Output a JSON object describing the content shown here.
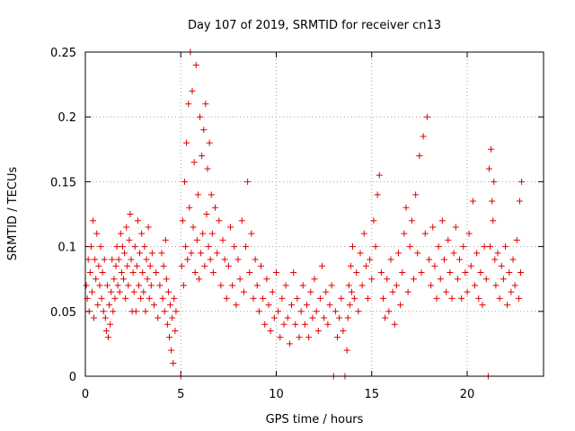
{
  "chart_data": {
    "type": "scatter",
    "title": "Day 107 of 2019, SRMTID for receiver cn13",
    "xlabel": "GPS time / hours",
    "ylabel": "SRMTID / TECUs",
    "xlim": [
      0,
      24
    ],
    "ylim": [
      0,
      0.25
    ],
    "xticks": [
      0,
      5,
      10,
      15,
      20
    ],
    "xtick_labels": [
      "0",
      "5",
      "10",
      "15",
      "20"
    ],
    "yticks": [
      0,
      0.05,
      0.1,
      0.15,
      0.2,
      0.25
    ],
    "ytick_labels": [
      "0",
      "0.05",
      "0.1",
      "0.15",
      "0.2",
      "0.25"
    ],
    "grid": true,
    "marker": "+",
    "series": [
      {
        "name": "SRMTID",
        "color": "#e00000",
        "points": [
          [
            0.05,
            0.07
          ],
          [
            0.1,
            0.06
          ],
          [
            0.15,
            0.09
          ],
          [
            0.2,
            0.05
          ],
          [
            0.25,
            0.08
          ],
          [
            0.3,
            0.1
          ],
          [
            0.35,
            0.065
          ],
          [
            0.4,
            0.12
          ],
          [
            0.45,
            0.045
          ],
          [
            0.5,
            0.09
          ],
          [
            0.55,
            0.075
          ],
          [
            0.6,
            0.11
          ],
          [
            0.65,
            0.055
          ],
          [
            0.7,
            0.085
          ],
          [
            0.75,
            0.07
          ],
          [
            0.8,
            0.1
          ],
          [
            0.85,
            0.06
          ],
          [
            0.9,
            0.08
          ],
          [
            0.95,
            0.05
          ],
          [
            1.0,
            0.09
          ],
          [
            1.05,
            0.045
          ],
          [
            1.1,
            0.035
          ],
          [
            1.15,
            0.07
          ],
          [
            1.2,
            0.03
          ],
          [
            1.25,
            0.055
          ],
          [
            1.3,
            0.04
          ],
          [
            1.35,
            0.065
          ],
          [
            1.4,
            0.09
          ],
          [
            1.45,
            0.05
          ],
          [
            1.5,
            0.075
          ],
          [
            1.55,
            0.06
          ],
          [
            1.6,
            0.085
          ],
          [
            1.65,
            0.1
          ],
          [
            1.7,
            0.07
          ],
          [
            1.75,
            0.09
          ],
          [
            1.8,
            0.065
          ],
          [
            1.85,
            0.11
          ],
          [
            1.9,
            0.08
          ],
          [
            1.95,
            0.1
          ],
          [
            2.0,
            0.075
          ],
          [
            2.05,
            0.095
          ],
          [
            2.1,
            0.06
          ],
          [
            2.15,
            0.115
          ],
          [
            2.2,
            0.085
          ],
          [
            2.25,
            0.07
          ],
          [
            2.3,
            0.105
          ],
          [
            2.35,
            0.125
          ],
          [
            2.4,
            0.09
          ],
          [
            2.45,
            0.05
          ],
          [
            2.5,
            0.08
          ],
          [
            2.55,
            0.065
          ],
          [
            2.6,
            0.1
          ],
          [
            2.65,
            0.05
          ],
          [
            2.7,
            0.085
          ],
          [
            2.75,
            0.12
          ],
          [
            2.8,
            0.07
          ],
          [
            2.85,
            0.095
          ],
          [
            2.9,
            0.06
          ],
          [
            2.95,
            0.11
          ],
          [
            3.0,
            0.08
          ],
          [
            3.05,
            0.065
          ],
          [
            3.1,
            0.1
          ],
          [
            3.15,
            0.05
          ],
          [
            3.2,
            0.09
          ],
          [
            3.25,
            0.075
          ],
          [
            3.3,
            0.115
          ],
          [
            3.35,
            0.06
          ],
          [
            3.4,
            0.085
          ],
          [
            3.45,
            0.07
          ],
          [
            3.5,
            0.095
          ],
          [
            3.6,
            0.055
          ],
          [
            3.7,
            0.08
          ],
          [
            3.8,
            0.045
          ],
          [
            3.9,
            0.07
          ],
          [
            4.0,
            0.095
          ],
          [
            4.05,
            0.06
          ],
          [
            4.1,
            0.085
          ],
          [
            4.15,
            0.05
          ],
          [
            4.2,
            0.105
          ],
          [
            4.25,
            0.075
          ],
          [
            4.3,
            0.04
          ],
          [
            4.35,
            0.065
          ],
          [
            4.4,
            0.03
          ],
          [
            4.45,
            0.055
          ],
          [
            4.5,
            0.02
          ],
          [
            4.55,
            0.045
          ],
          [
            4.6,
            0.01
          ],
          [
            4.65,
            0.06
          ],
          [
            4.7,
            0.035
          ],
          [
            4.75,
            0.05
          ],
          [
            5.0,
            0.0
          ],
          [
            5.05,
            0.085
          ],
          [
            5.1,
            0.12
          ],
          [
            5.15,
            0.07
          ],
          [
            5.2,
            0.15
          ],
          [
            5.25,
            0.1
          ],
          [
            5.3,
            0.18
          ],
          [
            5.35,
            0.09
          ],
          [
            5.4,
            0.21
          ],
          [
            5.45,
            0.13
          ],
          [
            5.5,
            0.25
          ],
          [
            5.55,
            0.095
          ],
          [
            5.6,
            0.22
          ],
          [
            5.65,
            0.115
          ],
          [
            5.7,
            0.165
          ],
          [
            5.75,
            0.08
          ],
          [
            5.8,
            0.24
          ],
          [
            5.85,
            0.105
          ],
          [
            5.9,
            0.14
          ],
          [
            5.95,
            0.075
          ],
          [
            6.0,
            0.2
          ],
          [
            6.05,
            0.095
          ],
          [
            6.1,
            0.17
          ],
          [
            6.15,
            0.11
          ],
          [
            6.2,
            0.19
          ],
          [
            6.25,
            0.085
          ],
          [
            6.3,
            0.21
          ],
          [
            6.35,
            0.125
          ],
          [
            6.4,
            0.16
          ],
          [
            6.45,
            0.1
          ],
          [
            6.5,
            0.18
          ],
          [
            6.55,
            0.09
          ],
          [
            6.6,
            0.14
          ],
          [
            6.65,
            0.11
          ],
          [
            6.7,
            0.08
          ],
          [
            6.8,
            0.13
          ],
          [
            6.9,
            0.095
          ],
          [
            7.0,
            0.12
          ],
          [
            7.1,
            0.07
          ],
          [
            7.2,
            0.105
          ],
          [
            7.3,
            0.09
          ],
          [
            7.4,
            0.06
          ],
          [
            7.5,
            0.085
          ],
          [
            7.6,
            0.115
          ],
          [
            7.7,
            0.07
          ],
          [
            7.8,
            0.1
          ],
          [
            7.9,
            0.055
          ],
          [
            8.0,
            0.09
          ],
          [
            8.1,
            0.075
          ],
          [
            8.2,
            0.12
          ],
          [
            8.3,
            0.065
          ],
          [
            8.4,
            0.1
          ],
          [
            8.5,
            0.15
          ],
          [
            8.6,
            0.08
          ],
          [
            8.7,
            0.11
          ],
          [
            8.8,
            0.06
          ],
          [
            8.9,
            0.09
          ],
          [
            9.0,
            0.07
          ],
          [
            9.1,
            0.05
          ],
          [
            9.2,
            0.085
          ],
          [
            9.3,
            0.06
          ],
          [
            9.4,
            0.04
          ],
          [
            9.5,
            0.075
          ],
          [
            9.6,
            0.055
          ],
          [
            9.7,
            0.035
          ],
          [
            9.8,
            0.065
          ],
          [
            9.9,
            0.045
          ],
          [
            10.0,
            0.08
          ],
          [
            10.1,
            0.05
          ],
          [
            10.2,
            0.03
          ],
          [
            10.3,
            0.06
          ],
          [
            10.4,
            0.04
          ],
          [
            10.5,
            0.07
          ],
          [
            10.6,
            0.045
          ],
          [
            10.7,
            0.025
          ],
          [
            10.8,
            0.055
          ],
          [
            10.9,
            0.08
          ],
          [
            11.0,
            0.04
          ],
          [
            11.1,
            0.06
          ],
          [
            11.2,
            0.03
          ],
          [
            11.3,
            0.05
          ],
          [
            11.4,
            0.07
          ],
          [
            11.5,
            0.04
          ],
          [
            11.6,
            0.055
          ],
          [
            11.7,
            0.03
          ],
          [
            11.8,
            0.065
          ],
          [
            11.9,
            0.045
          ],
          [
            12.0,
            0.075
          ],
          [
            12.1,
            0.05
          ],
          [
            12.2,
            0.035
          ],
          [
            12.3,
            0.06
          ],
          [
            12.4,
            0.085
          ],
          [
            12.5,
            0.045
          ],
          [
            12.6,
            0.065
          ],
          [
            12.7,
            0.04
          ],
          [
            12.8,
            0.055
          ],
          [
            12.9,
            0.07
          ],
          [
            13.0,
            0.0
          ],
          [
            13.1,
            0.05
          ],
          [
            13.2,
            0.03
          ],
          [
            13.3,
            0.045
          ],
          [
            13.4,
            0.06
          ],
          [
            13.5,
            0.035
          ],
          [
            13.6,
            0.0
          ],
          [
            13.7,
            0.02
          ],
          [
            13.75,
            0.045
          ],
          [
            13.8,
            0.07
          ],
          [
            13.85,
            0.055
          ],
          [
            13.9,
            0.085
          ],
          [
            13.95,
            0.065
          ],
          [
            14.0,
            0.1
          ],
          [
            14.1,
            0.06
          ],
          [
            14.2,
            0.08
          ],
          [
            14.3,
            0.05
          ],
          [
            14.4,
            0.095
          ],
          [
            14.5,
            0.07
          ],
          [
            14.6,
            0.11
          ],
          [
            14.7,
            0.085
          ],
          [
            14.8,
            0.06
          ],
          [
            14.9,
            0.09
          ],
          [
            15.0,
            0.075
          ],
          [
            15.1,
            0.12
          ],
          [
            15.2,
            0.1
          ],
          [
            15.3,
            0.14
          ],
          [
            15.4,
            0.155
          ],
          [
            15.5,
            0.08
          ],
          [
            15.6,
            0.06
          ],
          [
            15.7,
            0.045
          ],
          [
            15.8,
            0.075
          ],
          [
            15.9,
            0.05
          ],
          [
            16.0,
            0.09
          ],
          [
            16.1,
            0.065
          ],
          [
            16.2,
            0.04
          ],
          [
            16.3,
            0.07
          ],
          [
            16.4,
            0.095
          ],
          [
            16.5,
            0.055
          ],
          [
            16.6,
            0.08
          ],
          [
            16.7,
            0.11
          ],
          [
            16.8,
            0.13
          ],
          [
            16.9,
            0.065
          ],
          [
            17.0,
            0.1
          ],
          [
            17.1,
            0.12
          ],
          [
            17.2,
            0.075
          ],
          [
            17.3,
            0.14
          ],
          [
            17.4,
            0.095
          ],
          [
            17.5,
            0.17
          ],
          [
            17.6,
            0.08
          ],
          [
            17.7,
            0.185
          ],
          [
            17.8,
            0.11
          ],
          [
            17.9,
            0.2
          ],
          [
            18.0,
            0.09
          ],
          [
            18.1,
            0.07
          ],
          [
            18.2,
            0.115
          ],
          [
            18.3,
            0.085
          ],
          [
            18.4,
            0.06
          ],
          [
            18.5,
            0.1
          ],
          [
            18.6,
            0.075
          ],
          [
            18.7,
            0.12
          ],
          [
            18.8,
            0.09
          ],
          [
            18.9,
            0.065
          ],
          [
            19.0,
            0.105
          ],
          [
            19.1,
            0.08
          ],
          [
            19.2,
            0.06
          ],
          [
            19.3,
            0.095
          ],
          [
            19.4,
            0.115
          ],
          [
            19.5,
            0.075
          ],
          [
            19.6,
            0.09
          ],
          [
            19.7,
            0.06
          ],
          [
            19.8,
            0.1
          ],
          [
            19.9,
            0.08
          ],
          [
            20.0,
            0.065
          ],
          [
            20.1,
            0.11
          ],
          [
            20.2,
            0.085
          ],
          [
            20.3,
            0.135
          ],
          [
            20.4,
            0.07
          ],
          [
            20.5,
            0.095
          ],
          [
            20.6,
            0.06
          ],
          [
            20.7,
            0.08
          ],
          [
            20.8,
            0.055
          ],
          [
            20.9,
            0.1
          ],
          [
            21.0,
            0.075
          ],
          [
            21.1,
            0.0
          ],
          [
            21.15,
            0.16
          ],
          [
            21.2,
            0.1
          ],
          [
            21.25,
            0.175
          ],
          [
            21.3,
            0.135
          ],
          [
            21.35,
            0.12
          ],
          [
            21.4,
            0.15
          ],
          [
            21.45,
            0.09
          ],
          [
            21.5,
            0.07
          ],
          [
            21.6,
            0.095
          ],
          [
            21.7,
            0.06
          ],
          [
            21.8,
            0.085
          ],
          [
            21.9,
            0.075
          ],
          [
            22.0,
            0.1
          ],
          [
            22.1,
            0.055
          ],
          [
            22.2,
            0.08
          ],
          [
            22.3,
            0.065
          ],
          [
            22.4,
            0.09
          ],
          [
            22.5,
            0.07
          ],
          [
            22.6,
            0.105
          ],
          [
            22.7,
            0.06
          ],
          [
            22.75,
            0.135
          ],
          [
            22.8,
            0.08
          ],
          [
            22.85,
            0.15
          ]
        ]
      }
    ]
  }
}
